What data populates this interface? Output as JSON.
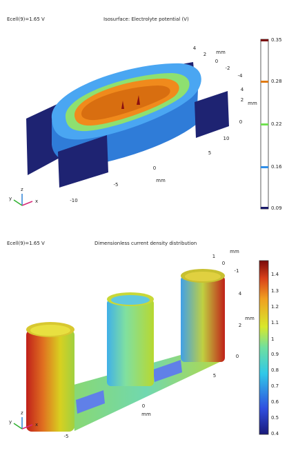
{
  "panels": [
    {
      "parameter": "Ecell(9)=1.65 V",
      "title": "Isosurface: Electrolyte potential (V)",
      "colorbar_ticks": [
        "0.35",
        "0.28",
        "0.22",
        "0.16",
        "0.09"
      ],
      "axes": {
        "unit": "mm",
        "x_ticks": [
          "10",
          "5",
          "0",
          "-5",
          "-10"
        ],
        "y_ticks": [
          "4",
          "2",
          "0",
          "-2",
          "-4"
        ],
        "z_ticks": [
          "4",
          "2",
          "0"
        ]
      },
      "triad": [
        "y",
        "z",
        "x"
      ]
    },
    {
      "parameter": "Ecell(9)=1.65 V",
      "title": "Dimensionless current density distribution",
      "colorbar_ticks": [
        "1.4",
        "1.3",
        "1.2",
        "1.1",
        "1",
        "0.9",
        "0.8",
        "0.7",
        "0.6",
        "0.5",
        "0.4"
      ],
      "axes": {
        "unit": "mm",
        "x_ticks": [
          "5",
          "0",
          "-5"
        ],
        "y_ticks": [
          "1",
          "0",
          "-1"
        ],
        "z_ticks": [
          "4",
          "2",
          "0"
        ]
      },
      "triad": [
        "y",
        "z",
        "x"
      ]
    }
  ]
}
